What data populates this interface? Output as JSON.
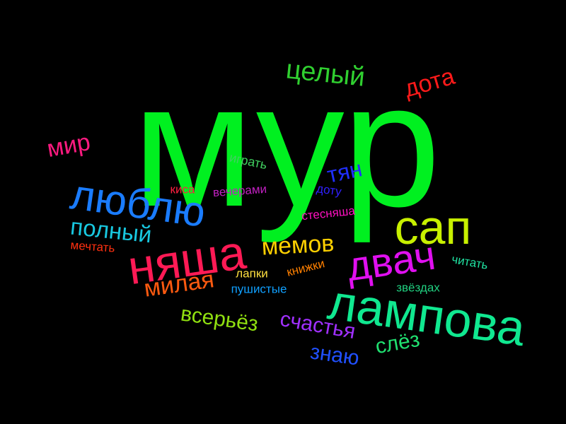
{
  "words": [
    {
      "text": "мур",
      "color": "#00f020"
    },
    {
      "text": "лампова",
      "color": "#10e890"
    },
    {
      "text": "няша",
      "color": "#ff1a55"
    },
    {
      "text": "люблю",
      "color": "#1a7cff"
    },
    {
      "text": "двач",
      "color": "#e010f0"
    },
    {
      "text": "сап",
      "color": "#c8f000"
    },
    {
      "text": "целый",
      "color": "#30d030"
    },
    {
      "text": "дота",
      "color": "#ff1a1a"
    },
    {
      "text": "мир",
      "color": "#ff1a80"
    },
    {
      "text": "тян",
      "color": "#2030ff"
    },
    {
      "text": "полный",
      "color": "#18c8e0"
    },
    {
      "text": "мемов",
      "color": "#ffd000"
    },
    {
      "text": "милая",
      "color": "#ff5a10"
    },
    {
      "text": "всерьёз",
      "color": "#90e010"
    },
    {
      "text": "счастья",
      "color": "#a030ff"
    },
    {
      "text": "знаю",
      "color": "#2050ff"
    },
    {
      "text": "слёз",
      "color": "#20e070"
    },
    {
      "text": "играть",
      "color": "#40d060"
    },
    {
      "text": "киса",
      "color": "#ff2040"
    },
    {
      "text": "вечерами",
      "color": "#c020c0"
    },
    {
      "text": "доту",
      "color": "#3020ff"
    },
    {
      "text": "стесняша",
      "color": "#ff10c0"
    },
    {
      "text": "мечтать",
      "color": "#ff3010"
    },
    {
      "text": "лапки",
      "color": "#ffe040"
    },
    {
      "text": "книжки",
      "color": "#ff8000"
    },
    {
      "text": "пушистые",
      "color": "#10a0ff"
    },
    {
      "text": "читать",
      "color": "#20e0a0"
    },
    {
      "text": "звёздах",
      "color": "#20d080"
    }
  ]
}
